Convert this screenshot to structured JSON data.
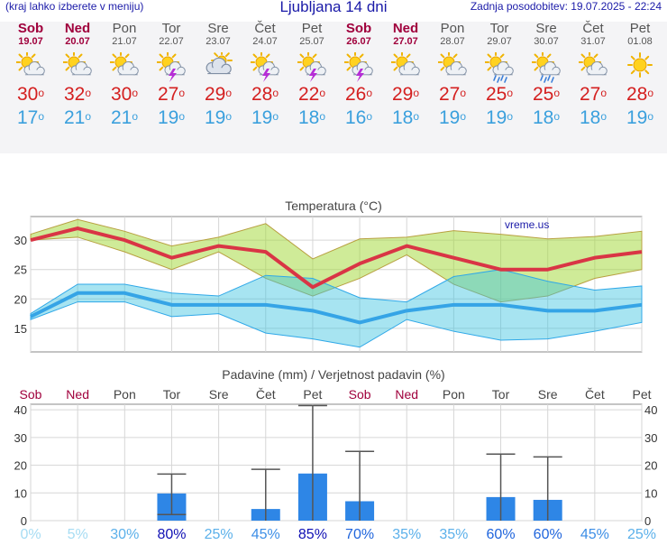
{
  "header": {
    "hint": "(kraj lahko izberete v meniju)",
    "title": "Ljubljana 14 dni",
    "updated": "Zadnja posodobitev: 19.07.2025 - 22:24"
  },
  "days": [
    {
      "name": "Sob",
      "date": "19.07",
      "weekend": true,
      "icon": "sun-cloud-icon",
      "tmax": "30",
      "tmin": "17"
    },
    {
      "name": "Ned",
      "date": "20.07",
      "weekend": true,
      "icon": "sun-cloud-icon",
      "tmax": "32",
      "tmin": "21"
    },
    {
      "name": "Pon",
      "date": "21.07",
      "weekend": false,
      "icon": "sun-cloud-icon",
      "tmax": "30",
      "tmin": "21"
    },
    {
      "name": "Tor",
      "date": "22.07",
      "weekend": false,
      "icon": "sun-thunder-icon",
      "tmax": "27",
      "tmin": "19"
    },
    {
      "name": "Sre",
      "date": "23.07",
      "weekend": false,
      "icon": "cloud-sun-icon",
      "tmax": "29",
      "tmin": "19"
    },
    {
      "name": "Čet",
      "date": "24.07",
      "weekend": false,
      "icon": "sun-thunder-icon",
      "tmax": "28",
      "tmin": "19"
    },
    {
      "name": "Pet",
      "date": "25.07",
      "weekend": false,
      "icon": "sun-thunder-icon",
      "tmax": "22",
      "tmin": "18"
    },
    {
      "name": "Sob",
      "date": "26.07",
      "weekend": true,
      "icon": "sun-thunder-icon",
      "tmax": "26",
      "tmin": "16"
    },
    {
      "name": "Ned",
      "date": "27.07",
      "weekend": true,
      "icon": "sun-cloud-icon",
      "tmax": "29",
      "tmin": "18"
    },
    {
      "name": "Pon",
      "date": "28.07",
      "weekend": false,
      "icon": "sun-cloud-icon",
      "tmax": "27",
      "tmin": "19"
    },
    {
      "name": "Tor",
      "date": "29.07",
      "weekend": false,
      "icon": "sun-rain-icon",
      "tmax": "25",
      "tmin": "19"
    },
    {
      "name": "Sre",
      "date": "30.07",
      "weekend": false,
      "icon": "sun-rain-icon",
      "tmax": "25",
      "tmin": "18"
    },
    {
      "name": "Čet",
      "date": "31.07",
      "weekend": false,
      "icon": "sun-cloud-icon",
      "tmax": "27",
      "tmin": "18"
    },
    {
      "name": "Pet",
      "date": "01.08",
      "weekend": false,
      "icon": "sun-icon",
      "tmax": "28",
      "tmin": "19"
    }
  ],
  "chart_data": [
    {
      "type": "line",
      "title": "Temperatura (°C)",
      "watermark": "vreme.us",
      "ylim": [
        11,
        34
      ],
      "yticks": [
        15,
        20,
        25,
        30
      ],
      "x": [
        "19.07",
        "20.07",
        "21.07",
        "22.07",
        "23.07",
        "24.07",
        "25.07",
        "26.07",
        "27.07",
        "28.07",
        "29.07",
        "30.07",
        "31.07",
        "01.08"
      ],
      "series": [
        {
          "name": "max",
          "color": "#d93545",
          "values": [
            30,
            32,
            30,
            27,
            29,
            28,
            22,
            26,
            29,
            27,
            25,
            25,
            27,
            28
          ]
        },
        {
          "name": "min",
          "color": "#35a4e6",
          "values": [
            17,
            21,
            21,
            19,
            19,
            19,
            18,
            16,
            18,
            19,
            19,
            18,
            18,
            19
          ]
        },
        {
          "name": "max-range-high",
          "values": [
            31,
            33.5,
            31.5,
            29,
            30.5,
            32.8,
            26.8,
            30.2,
            30.5,
            31.6,
            31,
            30.2,
            30.6,
            31.5
          ]
        },
        {
          "name": "max-range-low",
          "values": [
            30,
            30.5,
            28,
            25,
            28,
            23.5,
            20.5,
            23.5,
            27.5,
            22.5,
            19.5,
            20.5,
            23.5,
            25
          ]
        },
        {
          "name": "min-range-high",
          "values": [
            17.5,
            22.5,
            22.5,
            21,
            20.5,
            24,
            23.5,
            20.2,
            19.5,
            23.8,
            25,
            23,
            21.5,
            22.2
          ]
        },
        {
          "name": "min-range-low",
          "values": [
            16.5,
            19.5,
            19.5,
            17,
            17.5,
            14.2,
            13.2,
            11.8,
            16.5,
            14.5,
            13,
            13.2,
            14.5,
            16
          ]
        }
      ]
    },
    {
      "type": "bar",
      "title": "Padavine (mm) / Verjetnost padavin (%)",
      "ylim": [
        0,
        42
      ],
      "yticks": [
        0,
        10,
        20,
        30,
        40
      ],
      "categories": [
        "Sob",
        "Ned",
        "Pon",
        "Tor",
        "Sre",
        "Čet",
        "Pet",
        "Sob",
        "Ned",
        "Pon",
        "Tor",
        "Sre",
        "Čet",
        "Pet"
      ],
      "weekend": [
        true,
        true,
        false,
        false,
        false,
        false,
        false,
        true,
        true,
        false,
        false,
        false,
        false,
        false
      ],
      "values": [
        0,
        0,
        0,
        9.8,
        0,
        4.2,
        17,
        7,
        0,
        0,
        8.5,
        7.5,
        0,
        0
      ],
      "error_high": [
        0,
        0,
        0,
        16.8,
        0,
        18.5,
        41.5,
        25,
        0,
        0,
        24,
        23,
        0,
        0
      ],
      "error_low": [
        0,
        0,
        0,
        2.2,
        0,
        0,
        0,
        0,
        0,
        0,
        0,
        0,
        0,
        0
      ],
      "probability": [
        "0%",
        "5%",
        "30%",
        "80%",
        "25%",
        "45%",
        "85%",
        "70%",
        "35%",
        "35%",
        "60%",
        "60%",
        "45%",
        "25%"
      ],
      "probability_values": [
        0,
        5,
        30,
        80,
        25,
        45,
        85,
        70,
        35,
        35,
        60,
        60,
        45,
        25
      ]
    }
  ]
}
